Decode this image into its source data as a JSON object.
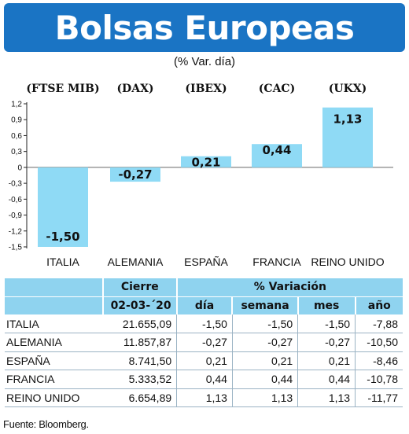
{
  "header": {
    "title": "Bolsas Europeas",
    "subtitle": "(% Var. día)"
  },
  "chart_data": {
    "type": "bar",
    "title": "Bolsas Europeas",
    "subtitle": "(% Var. día)",
    "categories": [
      "ITALIA",
      "ALEMANIA",
      "ESPAÑA",
      "FRANCIA",
      "REINO UNIDO"
    ],
    "index_labels": [
      "(FTSE MIB)",
      "(DAX)",
      "(IBEX)",
      "(CAC)",
      "(UKX)"
    ],
    "values": [
      -1.5,
      -0.27,
      0.21,
      0.44,
      1.13
    ],
    "value_labels": [
      "-1,50",
      "-0,27",
      "0,21",
      "0,44",
      "1,13"
    ],
    "ylim": [
      -1.5,
      1.2
    ],
    "yticks": [
      1.2,
      0.9,
      0.6,
      0.3,
      0,
      -0.3,
      -0.6,
      -0.9,
      -1.2,
      -1.5
    ],
    "ytick_labels": [
      "1,2",
      "0,9",
      "0,6",
      "0,3",
      "0",
      "-0,3",
      "-0,6",
      "-0,9",
      "-1,2",
      "-1,5"
    ],
    "bar_color": "#8fdaf5",
    "grid": false
  },
  "table": {
    "header_cierre": "Cierre",
    "header_variacion": "% Variación",
    "date": "02-03-´20",
    "columns": [
      "día",
      "semana",
      "mes",
      "año"
    ],
    "rows": [
      {
        "name": "ITALIA",
        "cierre": "21.655,09",
        "dia": "-1,50",
        "semana": "-1,50",
        "mes": "-1,50",
        "ano": "-7,88"
      },
      {
        "name": "ALEMANIA",
        "cierre": "11.857,87",
        "dia": "-0,27",
        "semana": "-0,27",
        "mes": "-0,27",
        "ano": "-10,50"
      },
      {
        "name": "ESPAÑA",
        "cierre": "8.741,50",
        "dia": "0,21",
        "semana": "0,21",
        "mes": "0,21",
        "ano": "-8,46"
      },
      {
        "name": "FRANCIA",
        "cierre": "5.333,52",
        "dia": "0,44",
        "semana": "0,44",
        "mes": "0,44",
        "ano": "-10,78"
      },
      {
        "name": "REINO UNIDO",
        "cierre": "6.654,89",
        "dia": "1,13",
        "semana": "1,13",
        "mes": "1,13",
        "ano": "-11,77"
      }
    ],
    "header_color": "#8fd3ef"
  },
  "source": "Fuente: Bloomberg.",
  "colors": {
    "title_bg": "#1a74c4",
    "title_text": "#ffffff"
  }
}
